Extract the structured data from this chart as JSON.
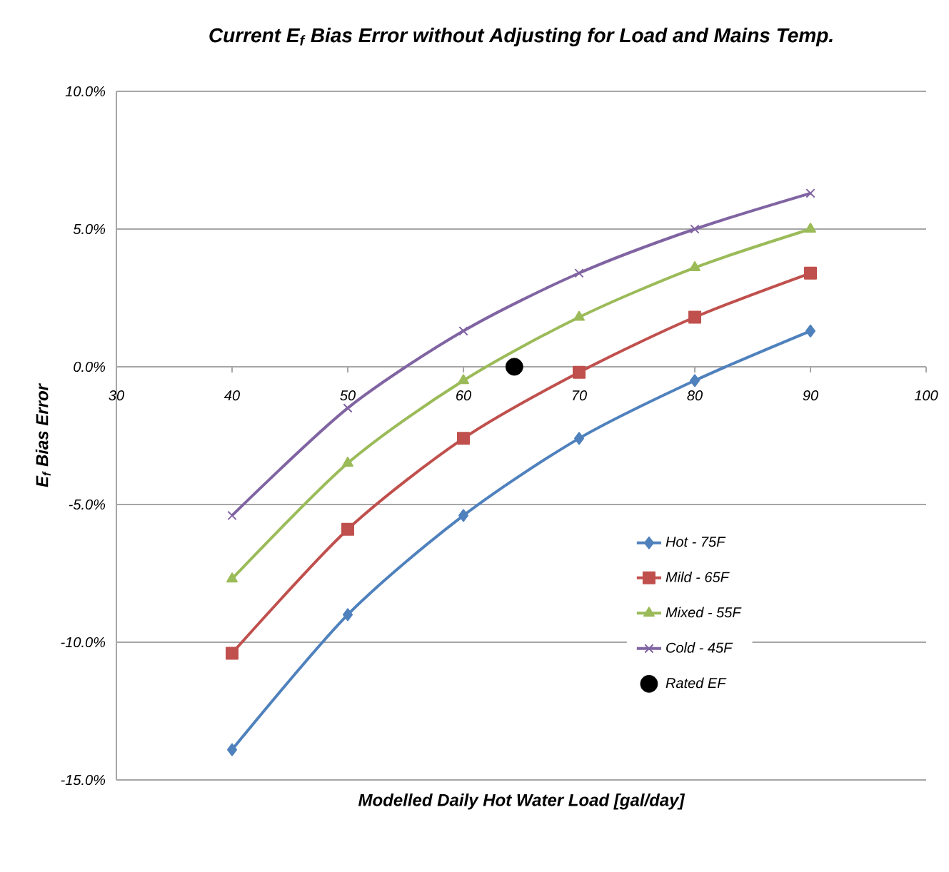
{
  "chart_data": {
    "type": "line",
    "title": "Current E$_{f}$ Bias Error without Adjusting for Load and Mains Temp.",
    "xlabel": "Modelled Daily Hot Water Load [gal/day]",
    "ylabel": "E$_{f}$ Bias Error",
    "xlim": [
      30,
      100
    ],
    "xticks": [
      30,
      40,
      50,
      60,
      70,
      80,
      90,
      100
    ],
    "ylim": [
      -15,
      10
    ],
    "yticks": [
      {
        "value": -15,
        "label": "-15.0%"
      },
      {
        "value": -10,
        "label": "-10.0%"
      },
      {
        "value": -5,
        "label": "-5.0%"
      },
      {
        "value": 0,
        "label": "0.0%"
      },
      {
        "value": 5,
        "label": "5.0%"
      },
      {
        "value": 10,
        "label": "10.0%"
      }
    ],
    "grid": "y",
    "legend": "bottom right",
    "line_style": "solid",
    "series": [
      {
        "name": "Hot - 75F",
        "color": "#4f81bd",
        "marker": "diamond",
        "x": [
          40,
          50,
          60,
          70,
          80,
          90
        ],
        "values": [
          -13.9,
          -9.0,
          -5.4,
          -2.6,
          -0.5,
          1.3
        ]
      },
      {
        "name": "Mild - 65F",
        "color": "#c0504d",
        "marker": "square",
        "x": [
          40,
          50,
          60,
          70,
          80,
          90
        ],
        "values": [
          -10.4,
          -5.9,
          -2.6,
          -0.2,
          1.8,
          3.4
        ]
      },
      {
        "name": "Mixed - 55F",
        "color": "#9bbb59",
        "marker": "triangle",
        "x": [
          40,
          50,
          60,
          70,
          80,
          90
        ],
        "values": [
          -7.7,
          -3.5,
          -0.5,
          1.8,
          3.6,
          5.0
        ]
      },
      {
        "name": "Cold - 45F",
        "color": "#8064a2",
        "marker": "cross",
        "x": [
          40,
          50,
          60,
          70,
          80,
          90
        ],
        "values": [
          -5.4,
          -1.5,
          1.3,
          3.4,
          5.0,
          6.3
        ]
      },
      {
        "name": "Rated EF",
        "color": "#000000",
        "type": "scatter",
        "marker": "circle",
        "x": [
          64.4
        ],
        "values": [
          0
        ]
      }
    ]
  }
}
